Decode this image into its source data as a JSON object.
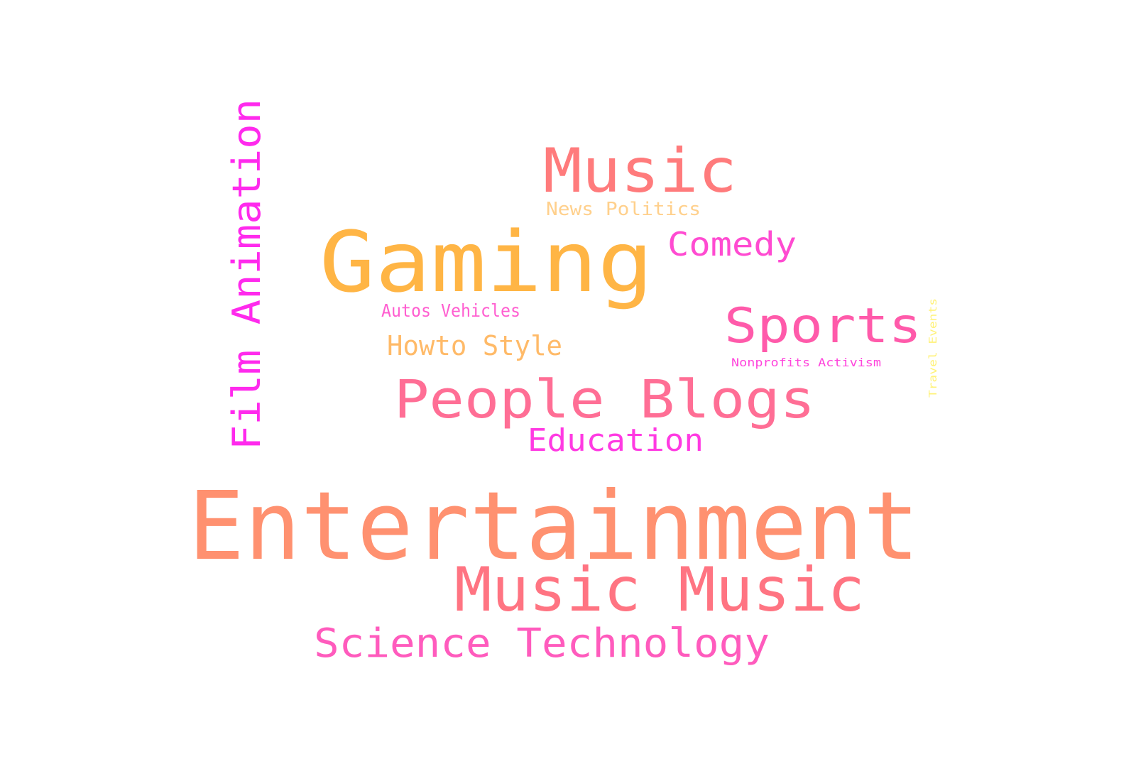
{
  "word_cloud": {
    "words": [
      {
        "text": "Entertainment",
        "color": "#ff9170"
      },
      {
        "text": "Gaming",
        "color": "#ffb545"
      },
      {
        "text": "Music Music",
        "color": "#ff7482"
      },
      {
        "text": "Music",
        "color": "#ff7b7c"
      },
      {
        "text": "People Blogs",
        "color": "#ff6e95"
      },
      {
        "text": "Science Technology",
        "color": "#ff5bbd"
      },
      {
        "text": "Film Animation",
        "color": "#ff2aed"
      },
      {
        "text": "Sports",
        "color": "#ff5aaa"
      },
      {
        "text": "Comedy",
        "color": "#ff4bd1"
      },
      {
        "text": "Education",
        "color": "#ff3ae2"
      },
      {
        "text": "Howto Style",
        "color": "#ffba68"
      },
      {
        "text": "News Politics",
        "color": "#ffd08c"
      },
      {
        "text": "Autos Vehicles",
        "color": "#ff5ed0"
      },
      {
        "text": "Nonprofits Activism",
        "color": "#ff45dc"
      },
      {
        "text": "Travel Events",
        "color": "#fff27a"
      }
    ]
  }
}
